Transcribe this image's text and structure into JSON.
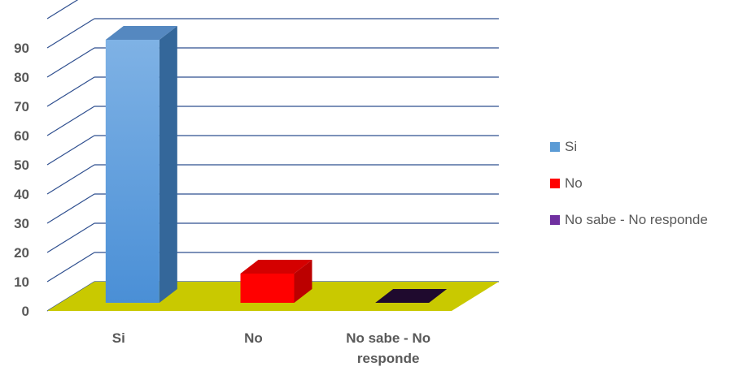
{
  "chart_data": {
    "type": "bar",
    "title": "",
    "xlabel": "",
    "ylabel": "",
    "categories": [
      "Si",
      "No",
      "No sabe - No responde"
    ],
    "category_label_lines": [
      [
        "Si"
      ],
      [
        "No"
      ],
      [
        "No sabe - No",
        "responde"
      ]
    ],
    "series": [
      {
        "name": "Si",
        "values": [
          90,
          null,
          null
        ]
      },
      {
        "name": "No",
        "values": [
          null,
          10,
          null
        ]
      },
      {
        "name": "No sabe - No responde",
        "values": [
          null,
          null,
          0
        ]
      }
    ],
    "values": [
      90,
      10,
      0
    ],
    "yticks": [
      "0",
      "10",
      "20",
      "30",
      "40",
      "50",
      "60",
      "70",
      "80",
      "90"
    ],
    "ylim": [
      0,
      100
    ],
    "grid": true,
    "legend": {
      "position": "right",
      "entries": [
        "Si",
        "No",
        "No sabe - No responde"
      ]
    },
    "colors": {
      "Si": "#5b9bd5",
      "No": "#ff0000",
      "No sabe - No responde": "#7030a0",
      "floor": "#c9c900",
      "gridlines": "#2f4f8f"
    },
    "style": "3d-column"
  }
}
